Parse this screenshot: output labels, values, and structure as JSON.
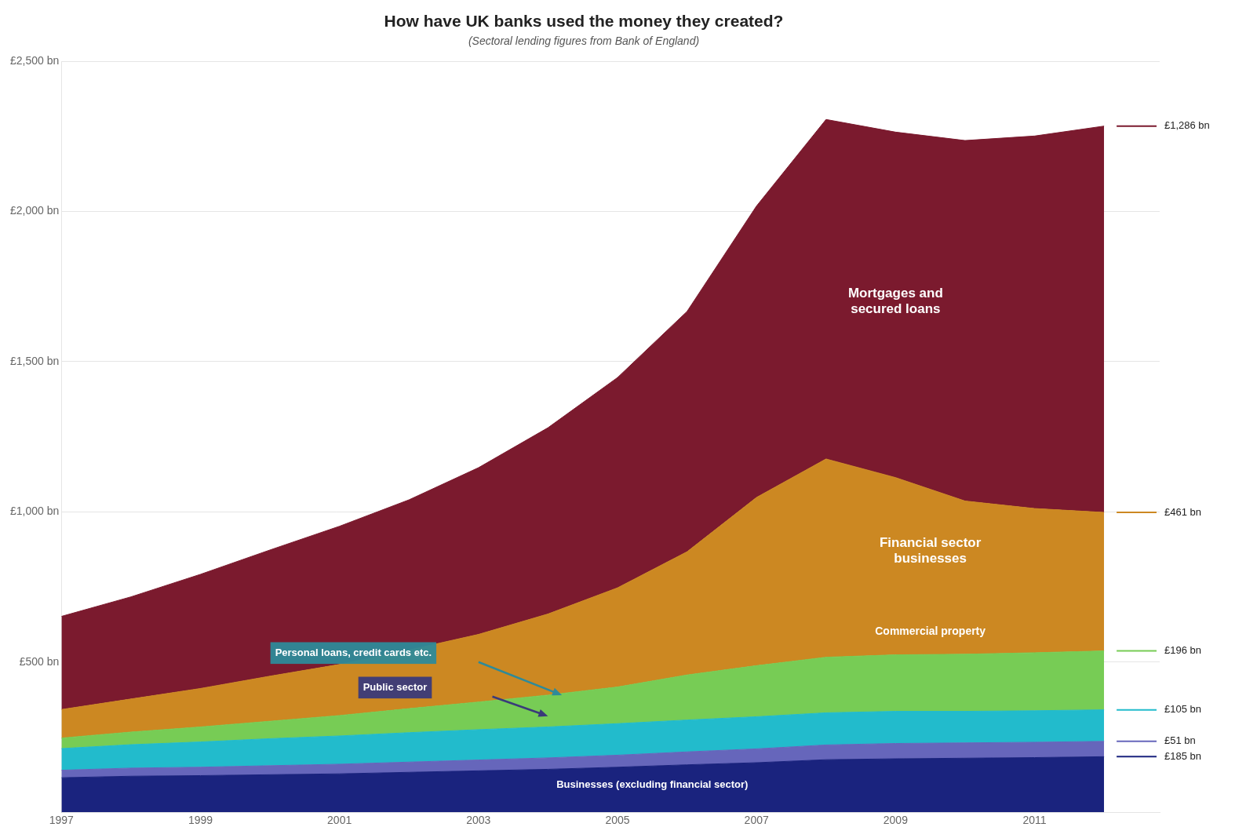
{
  "chart_data": {
    "type": "area",
    "title": "How have UK banks used the money they created?",
    "subtitle": "(Sectoral lending figures from Bank of England)",
    "x": [
      1997,
      1998,
      1999,
      2000,
      2001,
      2002,
      2003,
      2004,
      2005,
      2006,
      2007,
      2008,
      2009,
      2010,
      2011,
      2012
    ],
    "stacked": true,
    "data_labels": true,
    "grid": true,
    "series": [
      {
        "color": "#1a237e",
        "values": [
          115,
          120,
          122,
          125,
          128,
          133,
          138,
          143,
          150,
          158,
          165,
          175,
          178,
          180,
          182,
          185
        ],
        "value_labels": [
          null,
          null,
          null,
          null,
          null,
          null,
          null,
          null,
          null,
          null,
          null,
          null,
          null,
          null,
          null,
          "£185 bn"
        ]
      },
      {
        "color": "#6666bb",
        "values": [
          25,
          27,
          28,
          30,
          32,
          34,
          36,
          38,
          40,
          43,
          46,
          49,
          51,
          51,
          51,
          51
        ],
        "value_labels": [
          null,
          null,
          null,
          null,
          null,
          null,
          null,
          null,
          null,
          null,
          null,
          null,
          null,
          null,
          null,
          "£51 bn"
        ]
      },
      {
        "color": "#22bbcc",
        "values": [
          72,
          78,
          84,
          90,
          94,
          98,
          101,
          103,
          105,
          106,
          107,
          107,
          107,
          105,
          105,
          105
        ],
        "value_labels": [
          null,
          null,
          null,
          null,
          null,
          null,
          null,
          null,
          null,
          null,
          null,
          null,
          null,
          null,
          null,
          "£105 bn"
        ]
      },
      {
        "color": "#77cc55",
        "values": [
          35,
          42,
          50,
          58,
          68,
          80,
          92,
          106,
          122,
          150,
          170,
          185,
          188,
          190,
          193,
          196
        ],
        "value_labels": [
          null,
          null,
          null,
          null,
          null,
          null,
          null,
          null,
          null,
          null,
          null,
          null,
          null,
          null,
          null,
          "£196 bn"
        ]
      },
      {
        "color": "#cc8822",
        "values": [
          95,
          110,
          128,
          150,
          170,
          195,
          225,
          270,
          330,
          410,
          560,
          660,
          590,
          510,
          480,
          461
        ],
        "value_labels": [
          null,
          null,
          null,
          null,
          null,
          null,
          null,
          null,
          null,
          null,
          null,
          null,
          null,
          null,
          null,
          "£461 bn"
        ]
      },
      {
        "color": "#7b1a2e",
        "values": [
          310,
          340,
          380,
          420,
          460,
          500,
          555,
          620,
          700,
          800,
          970,
          1130,
          1150,
          1200,
          1240,
          1286
        ],
        "value_labels": [
          null,
          null,
          null,
          null,
          null,
          null,
          null,
          null,
          null,
          null,
          null,
          null,
          null,
          null,
          null,
          "£1,286 bn"
        ]
      }
    ],
    "xlim": [
      1997,
      2012.8
    ],
    "xticks": [
      1997,
      1999,
      2001,
      2003,
      2005,
      2007,
      2009,
      2011
    ],
    "ylim": [
      0,
      2500
    ],
    "yticks": [
      {
        "value": 500,
        "label": "£500 bn"
      },
      {
        "value": 1000,
        "label": "£1,000 bn"
      },
      {
        "value": 1500,
        "label": "£1,500 bn"
      },
      {
        "value": 2000,
        "label": "£2,000 bn"
      },
      {
        "value": 2500,
        "label": "£2,500 bn"
      }
    ],
    "annotations": [
      {
        "text": "Mortgages and\nsecured loans",
        "x": 2009.0,
        "y": 1700
      },
      {
        "text": "Financial sector\nbusinesses",
        "x": 2009.5,
        "y": 870
      },
      {
        "text": "Commercial property",
        "x": 2009.5,
        "y": 600
      },
      {
        "text": "Businesses (excluding financial sector)",
        "x": 2005.5,
        "y": 90
      },
      {
        "text": "Personal loans, credit cards etc.",
        "x": 2001.2,
        "y": 530,
        "color": "#2e8a99",
        "arrow_from": [
          2003.0,
          500
        ],
        "arrow_to": [
          2004.2,
          390
        ]
      },
      {
        "text": "Public sector",
        "x": 2001.8,
        "y": 415,
        "color": "#3a3a7a",
        "arrow_from": [
          2003.2,
          385
        ],
        "arrow_to": [
          2004.0,
          320
        ]
      }
    ]
  }
}
